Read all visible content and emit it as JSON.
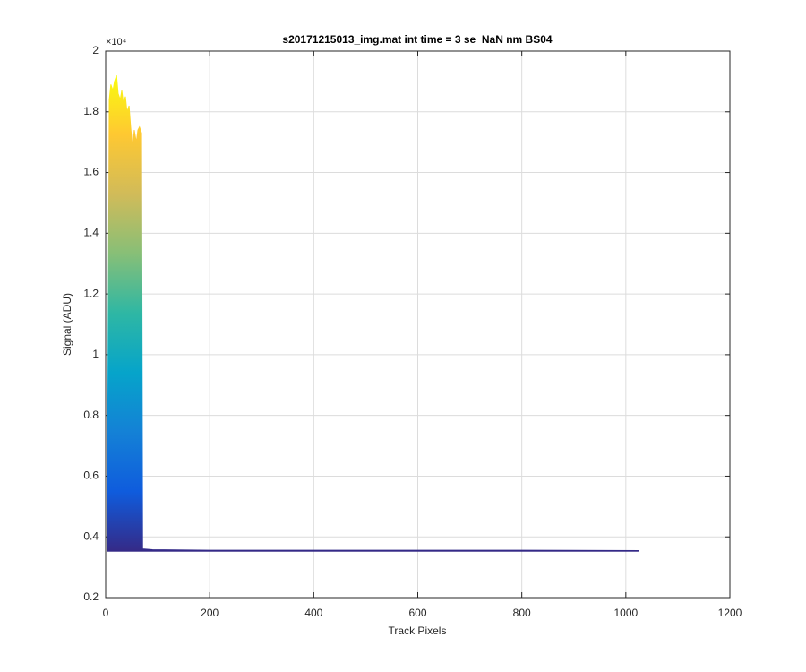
{
  "chart_data": {
    "type": "area",
    "title": "s20171215013_img.mat int time = 3 se  NaN nm BS04",
    "x_label": "Track Pixels",
    "y_label": "Signal (ADU)",
    "y_exponent": "×10⁴",
    "x": [
      3,
      7,
      10,
      14,
      17,
      21,
      24,
      28,
      31,
      34,
      38,
      41,
      45,
      48,
      52,
      55,
      59,
      62,
      65,
      69,
      71,
      74,
      90,
      200,
      400,
      600,
      800,
      1024
    ],
    "series": [
      {
        "values": [
          3700,
          18400,
          18900,
          18700,
          19000,
          19200,
          18600,
          18400,
          18700,
          18300,
          18500,
          18000,
          18200,
          17500,
          16800,
          17400,
          17000,
          17400,
          17500,
          17300,
          3600,
          3600,
          3580,
          3560,
          3560,
          3560,
          3560,
          3550
        ]
      },
      {
        "values": [
          3530,
          3530,
          3530,
          3530,
          3530,
          3530,
          3530,
          3530,
          3530,
          3530,
          3530,
          3530,
          3530,
          3530,
          3530,
          3530,
          3530,
          3530,
          3530,
          3530,
          3530,
          3530,
          3530,
          3530,
          3530,
          3530,
          3530,
          3530
        ],
        "color": "#352a87"
      }
    ],
    "colormap": [
      "#352a87",
      "#0f5cdd",
      "#1481d6",
      "#06a4ca",
      "#2eb7a4",
      "#87bf77",
      "#d1bb59",
      "#fec832",
      "#f9fb0e"
    ],
    "xlim": [
      0,
      1200
    ],
    "xticks": [
      0,
      200,
      400,
      600,
      800,
      1000,
      1200
    ],
    "ylim": [
      2000,
      20000
    ],
    "yticks": [
      {
        "value": 2000,
        "label": "0.2"
      },
      {
        "value": 4000,
        "label": "0.4"
      },
      {
        "value": 6000,
        "label": "0.6"
      },
      {
        "value": 8000,
        "label": "0.8"
      },
      {
        "value": 10000,
        "label": "1"
      },
      {
        "value": 12000,
        "label": "1.2"
      },
      {
        "value": 14000,
        "label": "1.4"
      },
      {
        "value": 16000,
        "label": "1.6"
      },
      {
        "value": 18000,
        "label": "1.8"
      },
      {
        "value": 20000,
        "label": "2"
      }
    ],
    "grid": true
  }
}
